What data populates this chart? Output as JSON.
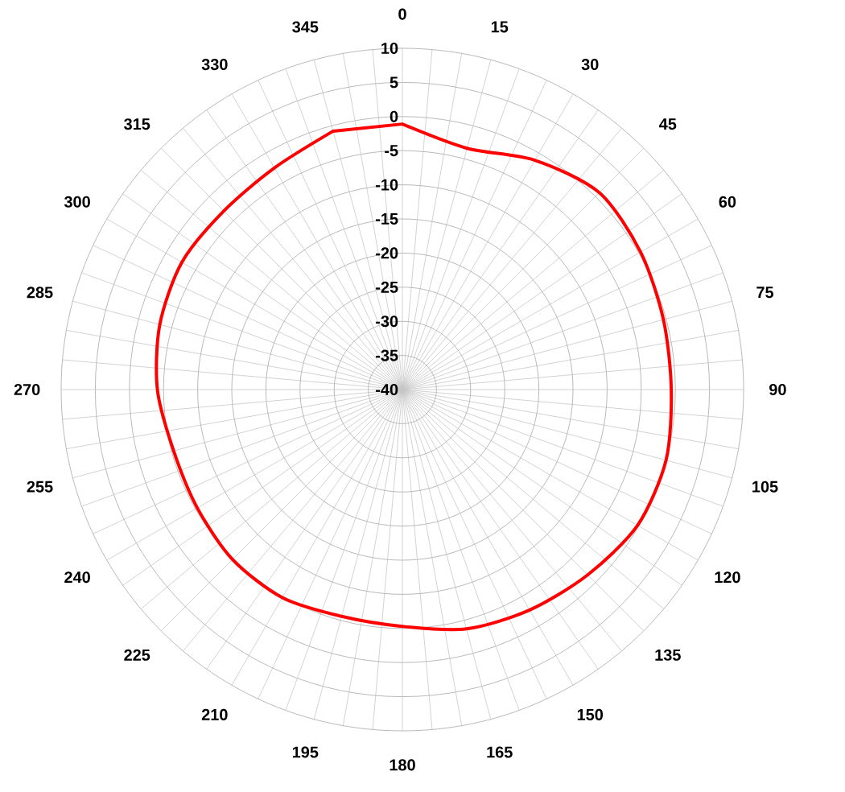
{
  "chart_data": {
    "type": "radar",
    "categories": [
      "0",
      "15",
      "30",
      "45",
      "60",
      "75",
      "90",
      "105",
      "120",
      "135",
      "150",
      "165",
      "180",
      "195",
      "210",
      "225",
      "240",
      "255",
      "270",
      "285",
      "300",
      "315",
      "330",
      "345"
    ],
    "series": [
      {
        "color": "#ff0000",
        "values": [
          -1.1,
          -3.4,
          -1.2,
          0.8,
          0.3,
          -0.4,
          -0.6,
          0.0,
          -0.2,
          -1.6,
          -2.7,
          -3.7,
          -5.3,
          -5.6,
          -4.8,
          -4.8,
          -5.3,
          -5.3,
          -4.1,
          -3.2,
          -2.7,
          -3.0,
          -2.5,
          -0.8
        ]
      }
    ],
    "ylim": [
      -40,
      10
    ],
    "yticks": [
      -40,
      -35,
      -30,
      -25,
      -20,
      -15,
      -10,
      -5,
      0,
      5,
      10
    ],
    "grid": true
  }
}
